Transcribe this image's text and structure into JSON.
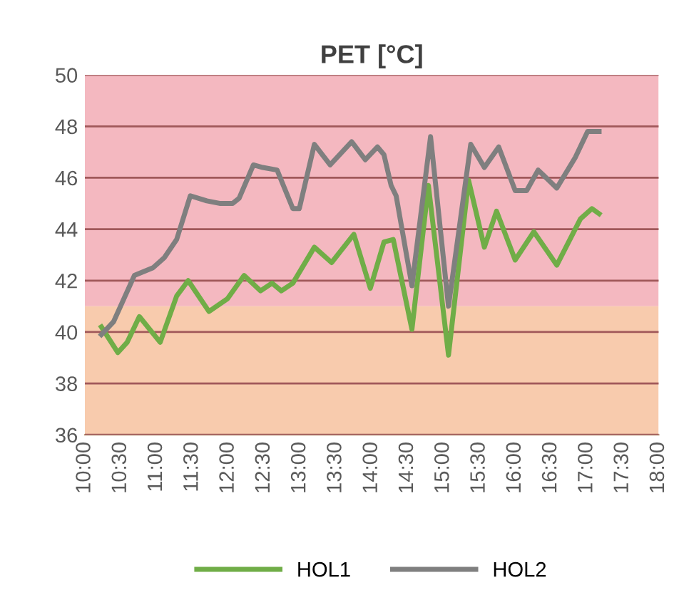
{
  "chart_data": {
    "type": "line",
    "title": "PET [°C]",
    "series": [
      {
        "name": "HOL1",
        "color": "#70ad47",
        "x": [
          10.23,
          10.46,
          10.59,
          10.76,
          11.05,
          11.28,
          11.44,
          11.73,
          11.99,
          12.22,
          12.45,
          12.61,
          12.74,
          12.9,
          13.2,
          13.44,
          13.75,
          13.98,
          14.17,
          14.3,
          14.56,
          14.79,
          15.07,
          15.35,
          15.57,
          15.74,
          16.0,
          16.26,
          16.58,
          16.91,
          17.07,
          17.17
        ],
        "values": [
          40.2,
          39.2,
          39.6,
          40.6,
          39.6,
          41.4,
          42.0,
          40.8,
          41.3,
          42.2,
          41.6,
          41.9,
          41.6,
          41.9,
          43.3,
          42.7,
          43.8,
          41.7,
          43.5,
          43.6,
          40.1,
          45.7,
          39.1,
          45.9,
          43.3,
          44.7,
          42.8,
          43.9,
          42.6,
          44.4,
          44.8,
          44.6
        ]
      },
      {
        "name": "HOL2",
        "color": "#7f7f7f",
        "x": [
          10.23,
          10.4,
          10.69,
          10.95,
          11.11,
          11.28,
          11.47,
          11.7,
          11.89,
          12.06,
          12.15,
          12.35,
          12.48,
          12.68,
          12.9,
          12.99,
          13.2,
          13.42,
          13.72,
          13.91,
          14.08,
          14.17,
          14.27,
          14.34,
          14.56,
          14.82,
          15.07,
          15.38,
          15.57,
          15.77,
          16.0,
          16.16,
          16.32,
          16.58,
          16.84,
          17.01,
          17.17
        ],
        "values": [
          39.9,
          40.4,
          42.2,
          42.5,
          42.9,
          43.6,
          45.3,
          45.1,
          45.0,
          45.0,
          45.2,
          46.5,
          46.4,
          46.3,
          44.8,
          44.8,
          47.3,
          46.5,
          47.4,
          46.7,
          47.2,
          46.9,
          45.7,
          45.3,
          41.8,
          47.6,
          41.0,
          47.3,
          46.4,
          47.2,
          45.5,
          45.5,
          46.3,
          45.6,
          46.8,
          47.8,
          47.8
        ]
      }
    ],
    "xlim": [
      10,
      18
    ],
    "xticks": [
      {
        "value": 10,
        "label": "10:00"
      },
      {
        "value": 10.5,
        "label": "10:30"
      },
      {
        "value": 11,
        "label": "11:00"
      },
      {
        "value": 11.5,
        "label": "11:30"
      },
      {
        "value": 12,
        "label": "12:00"
      },
      {
        "value": 12.5,
        "label": "12:30"
      },
      {
        "value": 13,
        "label": "13:00"
      },
      {
        "value": 13.5,
        "label": "13:30"
      },
      {
        "value": 14,
        "label": "14:00"
      },
      {
        "value": 14.5,
        "label": "14:30"
      },
      {
        "value": 15,
        "label": "15:00"
      },
      {
        "value": 15.5,
        "label": "15:30"
      },
      {
        "value": 16,
        "label": "16:00"
      },
      {
        "value": 16.5,
        "label": "16:30"
      },
      {
        "value": 17,
        "label": "17:00"
      },
      {
        "value": 17.5,
        "label": "17:30"
      },
      {
        "value": 18,
        "label": "18:00"
      }
    ],
    "ylim": [
      36,
      50
    ],
    "yticks": [
      36,
      38,
      40,
      42,
      44,
      46,
      48,
      50
    ],
    "bands": [
      {
        "axis": "y",
        "from": 36,
        "to": 41,
        "color": "#f8cbad"
      },
      {
        "axis": "y",
        "from": 41,
        "to": 50,
        "color": "#f4b8c0"
      }
    ],
    "grid": "y",
    "legend": "bottom",
    "marker": "none",
    "line_style": "solid"
  }
}
